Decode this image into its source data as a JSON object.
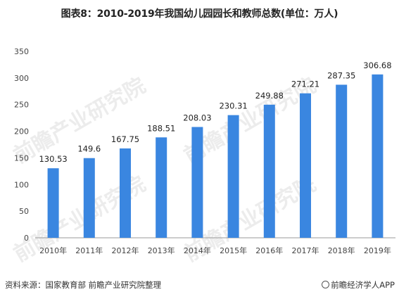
{
  "chart_data": {
    "type": "bar",
    "title": "图表8：2010-2019年我国幼儿园园长和教师总数(单位：万人)",
    "categories": [
      "2010年",
      "2011年",
      "2012年",
      "2013年",
      "2014年",
      "2015年",
      "2016年",
      "2017年",
      "2018年",
      "2019年"
    ],
    "values": [
      130.53,
      149.6,
      167.75,
      188.51,
      208.03,
      230.31,
      249.88,
      271.21,
      287.35,
      306.68
    ],
    "value_labels": [
      "130.53",
      "149.6",
      "167.75",
      "188.51",
      "208.03",
      "230.31",
      "249.88",
      "271.21",
      "287.35",
      "306.68"
    ],
    "ylim": [
      0,
      350
    ],
    "yticks": [
      0,
      50,
      100,
      150,
      200,
      250,
      300,
      350
    ],
    "grid": false,
    "bar_color": "#3a86e0"
  },
  "footer": {
    "source": "资料来源：国家教育部 前瞻产业研究院整理",
    "brand": "前瞻经济学人APP"
  },
  "watermark": {
    "text": "前瞻产业研究院",
    "color": "#e8e8e8"
  }
}
